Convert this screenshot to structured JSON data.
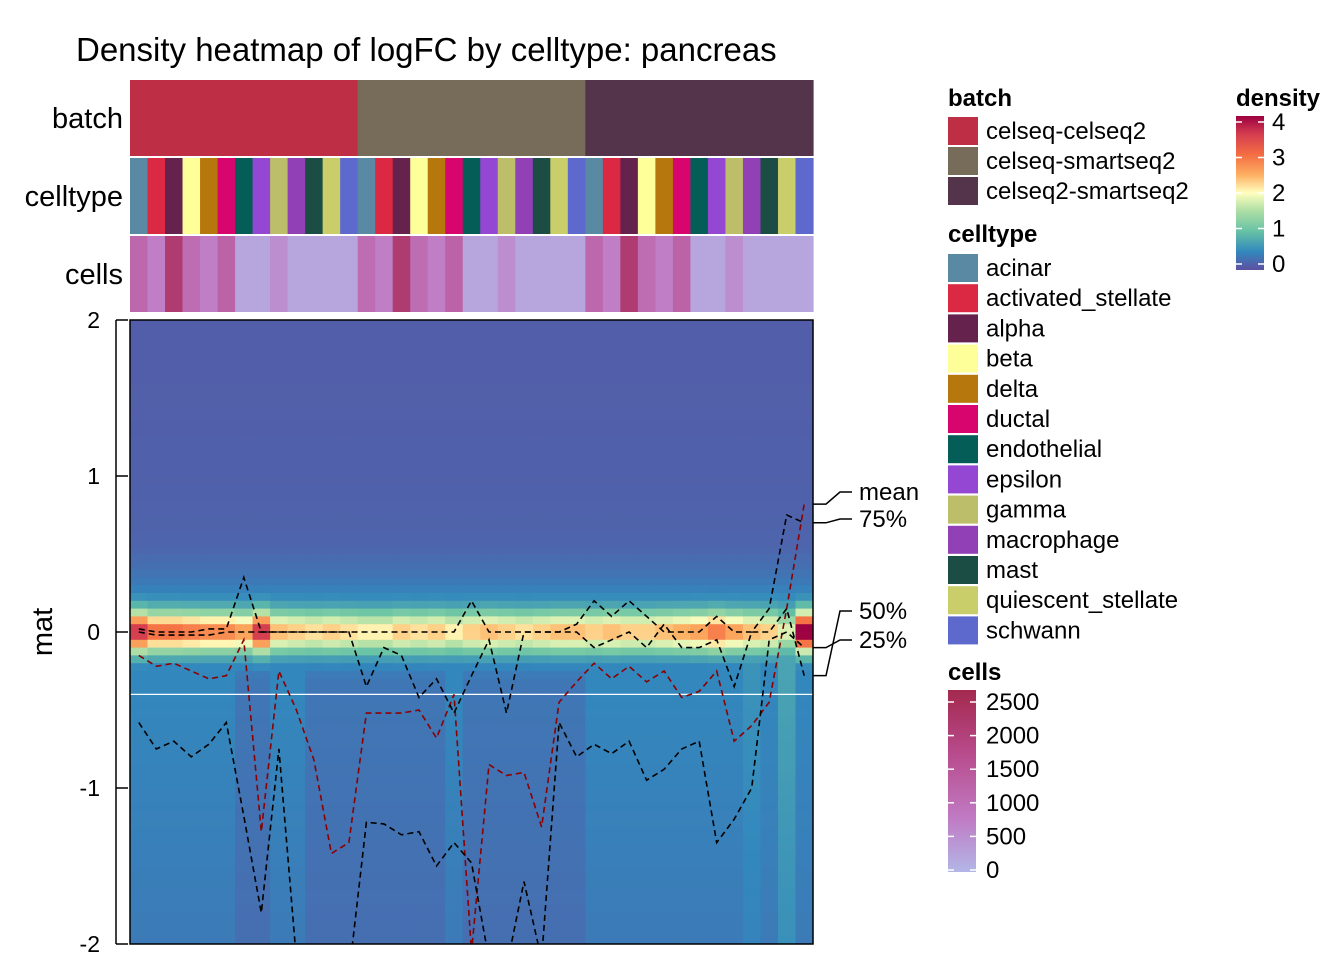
{
  "chart_data": {
    "type": "heatmap",
    "title": "Density heatmap of logFC by celltype: pancreas",
    "ylabel": "mat",
    "ylim": [
      -2,
      2
    ],
    "yticks": [
      "2",
      "1",
      "0",
      "-1",
      "-2"
    ],
    "ytick_values": [
      2,
      1,
      0,
      -1,
      -2
    ],
    "annotation_rows": [
      "batch",
      "celltype",
      "cells"
    ],
    "columns": 39,
    "batch": {
      "title": "batch",
      "levels": [
        "celseq-celseq2",
        "celseq-smartseq2",
        "celseq2-smartseq2"
      ],
      "colors": [
        "#BE2E44",
        "#776B5A",
        "#53344A"
      ],
      "per_column": [
        0,
        0,
        0,
        0,
        0,
        0,
        0,
        0,
        0,
        0,
        0,
        0,
        0,
        1,
        1,
        1,
        1,
        1,
        1,
        1,
        1,
        1,
        1,
        1,
        1,
        1,
        2,
        2,
        2,
        2,
        2,
        2,
        2,
        2,
        2,
        2,
        2,
        2,
        2
      ]
    },
    "celltype": {
      "title": "celltype",
      "levels": [
        "acinar",
        "activated_stellate",
        "alpha",
        "beta",
        "delta",
        "ductal",
        "endothelial",
        "epsilon",
        "gamma",
        "macrophage",
        "mast",
        "quiescent_stellate",
        "schwann"
      ],
      "colors": [
        "#5A89A4",
        "#DC2943",
        "#65224C",
        "#FFFF99",
        "#B6780D",
        "#D8056E",
        "#055D57",
        "#9347D2",
        "#BDBE6A",
        "#9240B5",
        "#1B4D45",
        "#C9CE6A",
        "#5D69CC"
      ],
      "per_column": [
        0,
        1,
        2,
        3,
        4,
        5,
        6,
        7,
        8,
        9,
        10,
        11,
        12,
        0,
        1,
        2,
        3,
        4,
        5,
        6,
        7,
        8,
        9,
        10,
        11,
        12,
        0,
        1,
        2,
        3,
        4,
        5,
        6,
        7,
        8,
        9,
        10,
        11,
        12
      ]
    },
    "cells": {
      "title": "cells",
      "legend_labels": [
        "2500",
        "2000",
        "1500",
        "1000",
        "500",
        "0"
      ],
      "legend_values": [
        2500,
        2000,
        1500,
        1000,
        500,
        0
      ],
      "values": [
        1100,
        700,
        2000,
        1000,
        700,
        1200,
        200,
        200,
        500,
        200,
        200,
        200,
        200,
        1000,
        700,
        2000,
        1000,
        700,
        1200,
        200,
        200,
        500,
        200,
        200,
        200,
        200,
        1100,
        700,
        2000,
        1000,
        700,
        1200,
        200,
        200,
        500,
        200,
        200,
        200,
        200
      ]
    },
    "density": {
      "title": "density",
      "legend_labels": [
        "4",
        "3",
        "2",
        "1",
        "0"
      ],
      "legend_values": [
        4,
        3,
        2,
        1,
        0
      ],
      "peak": [
        2.8,
        2.2,
        2.2,
        2.1,
        2.0,
        2.0,
        1.8,
        2.8,
        1.6,
        1.5,
        1.4,
        1.5,
        1.4,
        1.3,
        1.3,
        1.5,
        1.4,
        1.5,
        1.3,
        1.5,
        1.6,
        1.5,
        1.4,
        1.5,
        1.6,
        1.6,
        1.5,
        1.6,
        1.5,
        1.5,
        1.6,
        1.7,
        1.8,
        2.1,
        1.8,
        1.6,
        1.5,
        1.0,
        3.3
      ],
      "center_height": [
        1,
        1,
        1,
        1,
        1,
        1,
        1,
        1,
        1,
        1,
        1,
        1,
        1,
        1,
        1,
        1,
        1,
        1,
        1,
        1,
        1,
        1,
        1,
        1,
        1,
        1,
        1,
        1,
        1,
        1,
        1,
        1,
        1,
        1,
        1,
        1,
        1,
        1,
        1
      ],
      "tail_level": [
        0.45,
        0.45,
        0.45,
        0.45,
        0.45,
        0.45,
        0.3,
        0.3,
        0.45,
        0.45,
        0.3,
        0.3,
        0.3,
        0.3,
        0.3,
        0.3,
        0.3,
        0.3,
        0.45,
        0.3,
        0.3,
        0.3,
        0.3,
        0.3,
        0.3,
        0.3,
        0.45,
        0.45,
        0.45,
        0.45,
        0.45,
        0.45,
        0.45,
        0.45,
        0.45,
        0.55,
        0.45,
        0.7,
        0.45
      ]
    },
    "line_labels": [
      "mean",
      "75%",
      "50%",
      "25%"
    ],
    "line_colors": [
      "#8B0000",
      "#000000",
      "#000000",
      "#000000"
    ],
    "reference_line": -0.4,
    "series": [
      {
        "name": "mean",
        "values": [
          -0.15,
          -0.22,
          -0.2,
          -0.25,
          -0.3,
          -0.28,
          -0.05,
          -1.28,
          -0.25,
          -0.5,
          -0.82,
          -1.42,
          -1.35,
          -0.52,
          -0.52,
          -0.52,
          -0.5,
          -0.68,
          -0.4,
          -2.05,
          -0.85,
          -0.92,
          -0.9,
          -1.25,
          -0.45,
          -0.32,
          -0.2,
          -0.3,
          -0.22,
          -0.32,
          -0.25,
          -0.42,
          -0.38,
          -0.25,
          -0.7,
          -0.6,
          -0.45,
          0.15,
          0.82
        ]
      },
      {
        "name": "75%",
        "values": [
          0.02,
          0.0,
          0.0,
          0.0,
          0.02,
          0.02,
          0.35,
          0.0,
          0.0,
          0.0,
          0.0,
          0.0,
          0.0,
          0.0,
          0.0,
          0.0,
          0.0,
          0.0,
          0.0,
          0.2,
          0.0,
          0.0,
          0.0,
          0.0,
          0.0,
          0.05,
          0.2,
          0.1,
          0.2,
          0.1,
          0.0,
          0.0,
          0.0,
          0.1,
          0.0,
          0.0,
          0.15,
          0.75,
          0.7
        ]
      },
      {
        "name": "50%",
        "values": [
          0.0,
          -0.02,
          -0.02,
          -0.02,
          -0.02,
          0.0,
          0.0,
          0.0,
          0.0,
          0.0,
          0.0,
          0.0,
          0.0,
          -0.35,
          -0.1,
          -0.15,
          -0.42,
          -0.3,
          -0.52,
          -0.28,
          -0.05,
          -0.52,
          -0.0,
          -0.0,
          -0.0,
          -0.0,
          -0.1,
          -0.05,
          0.0,
          -0.1,
          0.05,
          -0.1,
          -0.1,
          -0.05,
          -0.35,
          -0.0,
          -0.0,
          0.15,
          -0.28
        ]
      },
      {
        "name": "25%",
        "values": [
          -0.58,
          -0.75,
          -0.7,
          -0.8,
          -0.72,
          -0.58,
          -1.18,
          -1.8,
          -0.75,
          -2.1,
          -2.2,
          -2.2,
          -2.2,
          -1.22,
          -1.23,
          -1.3,
          -1.28,
          -1.5,
          -1.35,
          -1.48,
          -2.1,
          -2.15,
          -1.6,
          -2.1,
          -0.58,
          -0.8,
          -0.72,
          -0.78,
          -0.7,
          -0.95,
          -0.88,
          -0.75,
          -0.7,
          -1.35,
          -1.2,
          -1.0,
          -0.05,
          -0.0,
          -0.1
        ]
      }
    ]
  }
}
